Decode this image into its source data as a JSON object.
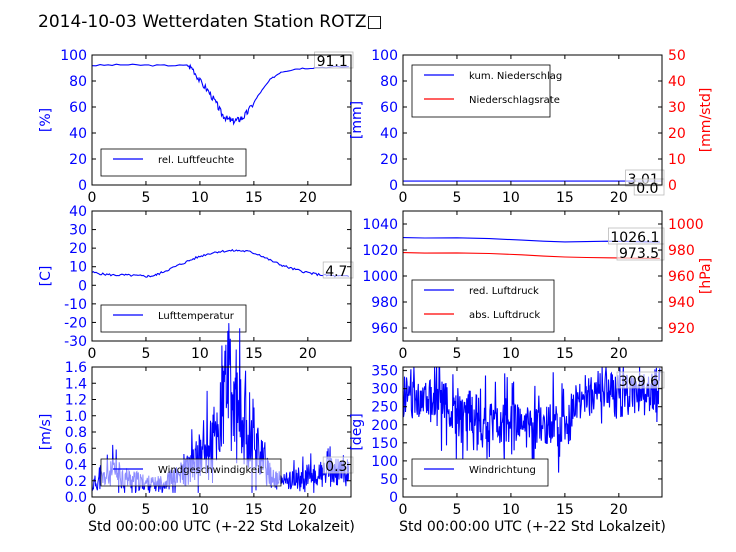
{
  "page_title": "2014-10-03 Wetterdaten Station ROTZ□",
  "colors": {
    "left_axis": "#0000ff",
    "right_axis": "#ff0000",
    "line_blue": "#0000ff",
    "line_light": "#8080ff",
    "line_red": "#ff0000"
  },
  "chart_data": [
    {
      "id": "humidity",
      "type": "line",
      "ylabel": "[%]",
      "xlim": [
        0,
        24
      ],
      "ylim": [
        0,
        100
      ],
      "xticks": [
        0,
        5,
        10,
        15,
        20
      ],
      "yticks": [
        0,
        20,
        40,
        60,
        80,
        100
      ],
      "legend": {
        "position": "lower-left",
        "entries": [
          "rel. Luftfeuchte"
        ]
      },
      "last_value_label": "91.1",
      "series": [
        {
          "name": "rel. Luftfeuchte",
          "x": [
            0,
            3,
            6,
            8.8,
            9.3,
            10,
            10.8,
            11.5,
            12,
            12.5,
            13,
            13.5,
            14,
            14.5,
            15.5,
            16.5,
            17.5,
            19,
            21,
            23.8
          ],
          "y": [
            92,
            92.5,
            92,
            92,
            90,
            80,
            72,
            63,
            55,
            51,
            49,
            50,
            52,
            57,
            70,
            81,
            87,
            89.5,
            90.5,
            91.1
          ]
        }
      ]
    },
    {
      "id": "precip",
      "type": "line",
      "ylabel": "[mm]",
      "ylabel_right": "[mm/std]",
      "xlim": [
        0,
        24
      ],
      "ylim": [
        0,
        100
      ],
      "ylim_right": [
        0,
        50
      ],
      "xticks": [
        0,
        5,
        10,
        15,
        20
      ],
      "yticks": [
        0,
        20,
        40,
        60,
        80,
        100
      ],
      "yticks_right": [
        0,
        10,
        20,
        30,
        40,
        50
      ],
      "legend": {
        "position": "upper-left",
        "entries": [
          "kum. Niederschlag",
          "Niederschlagsrate"
        ]
      },
      "last_value_labels": [
        "3.01",
        "0.0"
      ],
      "series": [
        {
          "name": "kum. Niederschlag",
          "x": [
            0,
            24
          ],
          "y": [
            3.01,
            3.01
          ]
        },
        {
          "name": "Niederschlagsrate",
          "axis": "right",
          "x": [
            0,
            24
          ],
          "y": [
            0,
            0
          ]
        }
      ]
    },
    {
      "id": "temperature",
      "type": "line",
      "ylabel": "[C]",
      "xlim": [
        0,
        24
      ],
      "ylim": [
        -30,
        40
      ],
      "xticks": [
        0,
        5,
        10,
        15,
        20
      ],
      "yticks": [
        -30,
        -20,
        -10,
        0,
        10,
        20,
        30,
        40
      ],
      "legend": {
        "position": "lower-left",
        "entries": [
          "Lufttemperatur"
        ]
      },
      "last_value_label": "4.7",
      "series": [
        {
          "name": "Lufttemperatur",
          "x": [
            0,
            1,
            2,
            3,
            4,
            5,
            5.8,
            6.5,
            7.5,
            8.5,
            9.5,
            10.5,
            11.5,
            12.5,
            13.5,
            14.5,
            15.5,
            16.5,
            17.5,
            18.5,
            19.5,
            20.5,
            21.5,
            22.5,
            23.8
          ],
          "y": [
            7,
            6,
            5.5,
            5.5,
            5.2,
            4.8,
            5.2,
            7,
            9.5,
            12,
            14.5,
            16.5,
            18,
            18.5,
            18.7,
            18.2,
            16.5,
            13.5,
            11,
            9,
            7.5,
            6.2,
            5.4,
            5,
            4.7
          ]
        }
      ]
    },
    {
      "id": "pressure",
      "type": "line",
      "ylabel": "",
      "ylabel_right": "[hPa]",
      "xlim": [
        0,
        24
      ],
      "ylim": [
        950,
        1050
      ],
      "ylim_right": [
        910,
        1010
      ],
      "xticks": [
        0,
        5,
        10,
        15,
        20
      ],
      "yticks": [
        960,
        980,
        1000,
        1020,
        1040
      ],
      "yticks_right": [
        920,
        940,
        960,
        980,
        1000
      ],
      "legend": {
        "position": "lower-left",
        "entries": [
          "red. Luftdruck",
          "abs. Luftdruck"
        ]
      },
      "last_value_labels": [
        "1026.1",
        "973.5"
      ],
      "series": [
        {
          "name": "red. Luftdruck",
          "x": [
            0,
            2,
            5,
            8,
            11,
            13,
            15,
            17,
            19,
            21,
            23.8
          ],
          "y": [
            1029.5,
            1029.2,
            1029.4,
            1028.8,
            1027.6,
            1026.8,
            1026.2,
            1026.5,
            1026.8,
            1026.5,
            1026.1
          ]
        },
        {
          "name": "abs. Luftdruck",
          "axis": "right",
          "x": [
            0,
            2,
            5,
            8,
            11,
            13,
            15,
            17,
            19,
            21,
            23.8
          ],
          "y": [
            978,
            977.6,
            977.8,
            977.3,
            976.3,
            975.3,
            974.6,
            974.2,
            974,
            973.8,
            973.5
          ]
        }
      ]
    },
    {
      "id": "wind_speed",
      "type": "line",
      "ylabel": "[m/s]",
      "xlabel": "Std 00:00:00 UTC (+-22 Std Lokalzeit)",
      "xlim": [
        0,
        24
      ],
      "ylim": [
        0,
        1.6
      ],
      "xticks": [
        0,
        5,
        10,
        15,
        20
      ],
      "yticks": [
        0.0,
        0.2,
        0.4,
        0.6,
        0.8,
        1.0,
        1.2,
        1.4,
        1.6
      ],
      "legend": {
        "position": "lower-left",
        "entries": [
          "Windgeschwindigkeit"
        ]
      },
      "last_value_label": "0.3",
      "series": [
        {
          "name": "Windgeschwindigkeit",
          "x": [
            0,
            2,
            4,
            6,
            8,
            9,
            10,
            11,
            12,
            12.5,
            13,
            14,
            15,
            16,
            17,
            18,
            20,
            22,
            23.8
          ],
          "y": [
            0.15,
            0.3,
            0.2,
            0.15,
            0.25,
            0.35,
            0.5,
            0.65,
            0.9,
            1.5,
            1.1,
            0.9,
            0.8,
            0.35,
            0.2,
            0.2,
            0.25,
            0.3,
            0.3
          ]
        }
      ]
    },
    {
      "id": "wind_direction",
      "type": "line",
      "ylabel": "[deg]",
      "xlabel": "Std 00:00:00 UTC (+-22 Std Lokalzeit)",
      "xlim": [
        0,
        24
      ],
      "ylim": [
        0,
        360
      ],
      "xticks": [
        0,
        5,
        10,
        15,
        20
      ],
      "yticks": [
        0,
        50,
        100,
        150,
        200,
        250,
        300,
        350
      ],
      "legend": {
        "position": "lower-left",
        "entries": [
          "Windrichtung"
        ]
      },
      "last_value_label": "309.6",
      "series": [
        {
          "name": "Windrichtung",
          "x": [
            0,
            2,
            4,
            5,
            6,
            8,
            10,
            12,
            14,
            15,
            16,
            17,
            18,
            20,
            22,
            23.8
          ],
          "y": [
            270,
            280,
            260,
            220,
            240,
            200,
            210,
            190,
            210,
            170,
            250,
            270,
            290,
            280,
            280,
            309.6
          ]
        }
      ]
    }
  ]
}
